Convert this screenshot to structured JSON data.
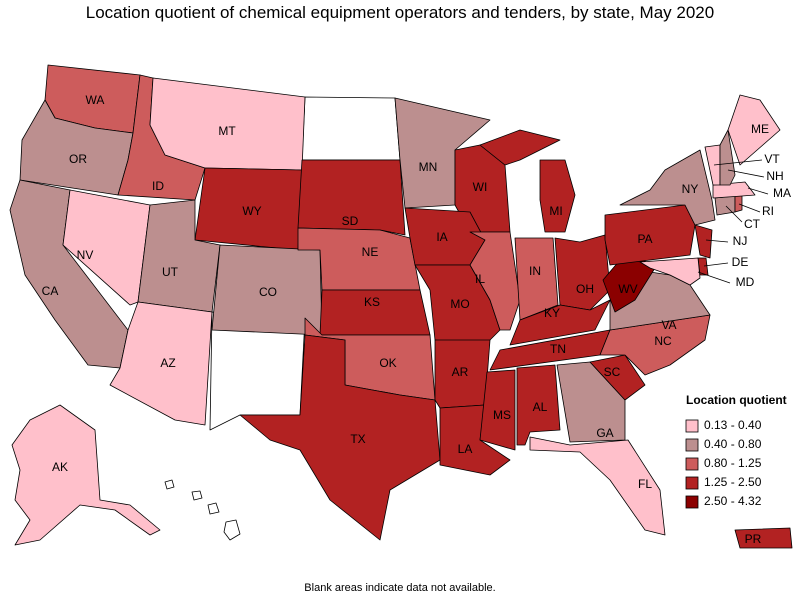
{
  "title": "Location quotient of chemical equipment operators and tenders, by state, May 2020",
  "states": [
    {
      "label": "WA",
      "color": "#cd5c5c"
    },
    {
      "label": "OR",
      "color": "#bc8f8f"
    },
    {
      "label": "CA",
      "color": "#bc8f8f"
    },
    {
      "label": "NV",
      "color": "#ffc0cb"
    },
    {
      "label": "ID",
      "color": "#cd5c5c"
    },
    {
      "label": "MT",
      "color": "#ffc0cb"
    },
    {
      "label": "WY",
      "color": "#b22222"
    },
    {
      "label": "UT",
      "color": "#bc8f8f"
    },
    {
      "label": "CO",
      "color": "#bc8f8f"
    },
    {
      "label": "AZ",
      "color": "#ffc0cb"
    },
    {
      "label": "SD",
      "color": "#b22222"
    },
    {
      "label": "NE",
      "color": "#cd5c5c"
    },
    {
      "label": "KS",
      "color": "#b22222"
    },
    {
      "label": "OK",
      "color": "#cd5c5c"
    },
    {
      "label": "TX",
      "color": "#b22222"
    },
    {
      "label": "MN",
      "color": "#bc8f8f"
    },
    {
      "label": "WI",
      "color": "#b22222"
    },
    {
      "label": "IA",
      "color": "#b22222"
    },
    {
      "label": "MO",
      "color": "#b22222"
    },
    {
      "label": "AR",
      "color": "#b22222"
    },
    {
      "label": "LA",
      "color": "#b22222"
    },
    {
      "label": "IL",
      "color": "#cd5c5c"
    },
    {
      "label": "MI",
      "color": "#b22222"
    },
    {
      "label": "IN",
      "color": "#cd5c5c"
    },
    {
      "label": "OH",
      "color": "#b22222"
    },
    {
      "label": "KY",
      "color": "#b22222"
    },
    {
      "label": "TN",
      "color": "#b22222"
    },
    {
      "label": "MS",
      "color": "#b22222"
    },
    {
      "label": "AL",
      "color": "#b22222"
    },
    {
      "label": "GA",
      "color": "#bc8f8f"
    },
    {
      "label": "FL",
      "color": "#ffc0cb"
    },
    {
      "label": "SC",
      "color": "#b22222"
    },
    {
      "label": "NC",
      "color": "#cd5c5c"
    },
    {
      "label": "VA",
      "color": "#bc8f8f"
    },
    {
      "label": "WV",
      "color": "#8b0000"
    },
    {
      "label": "PA",
      "color": "#b22222"
    },
    {
      "label": "NY",
      "color": "#bc8f8f"
    },
    {
      "label": "NJ",
      "color": "#b22222"
    },
    {
      "label": "DE",
      "color": "#b22222"
    },
    {
      "label": "MD",
      "color": "#ffc0cb"
    },
    {
      "label": "CT",
      "color": "#bc8f8f"
    },
    {
      "label": "RI",
      "color": "#cd5c5c"
    },
    {
      "label": "MA",
      "color": "#ffc0cb"
    },
    {
      "label": "VT",
      "color": "#ffc0cb"
    },
    {
      "label": "NH",
      "color": "#bc8f8f"
    },
    {
      "label": "ME",
      "color": "#ffc0cb"
    },
    {
      "label": "AK",
      "color": "#ffc0cb"
    },
    {
      "label": "PR",
      "color": "#b22222"
    }
  ],
  "legend": {
    "title": "Location quotient",
    "items": [
      {
        "label": "0.13 - 0.40",
        "color": "#ffc0cb"
      },
      {
        "label": "0.40 - 0.80",
        "color": "#bc8f8f"
      },
      {
        "label": "0.80 - 1.25",
        "color": "#cd5c5c"
      },
      {
        "label": "1.25 - 2.50",
        "color": "#b22222"
      },
      {
        "label": "2.50 - 4.32",
        "color": "#8b0000"
      }
    ]
  },
  "note": "Blank areas indicate data not available."
}
